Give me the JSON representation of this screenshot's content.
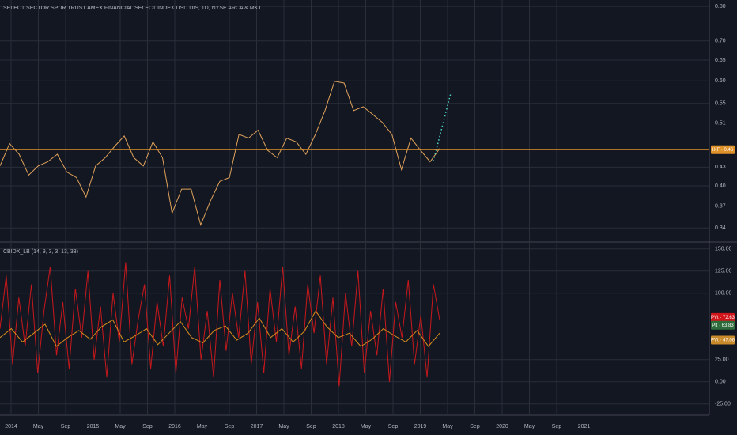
{
  "chart_data": [
    {
      "type": "line",
      "title": "SELECT SECTOR SPDR TRUST AMEX FINANCIAL SELECT INDEX USD DIS, 1D, NYSE ARCA & MKT",
      "log": true,
      "ylim": [
        0.323,
        0.82
      ],
      "yticks": [
        {
          "value": 0.8,
          "label": "0.80"
        },
        {
          "value": 0.7,
          "label": "0.70"
        },
        {
          "value": 0.65,
          "label": "0.65"
        },
        {
          "value": 0.6,
          "label": "0.60"
        },
        {
          "value": 0.55,
          "label": "0.55"
        },
        {
          "value": 0.51,
          "label": "0.51"
        },
        {
          "value": 0.43,
          "label": "0.43"
        },
        {
          "value": 0.4,
          "label": "0.40"
        },
        {
          "value": 0.37,
          "label": "0.37"
        },
        {
          "value": 0.34,
          "label": "0.34"
        }
      ],
      "color": "#e0a25a",
      "values": [
        0.432,
        0.471,
        0.452,
        0.417,
        0.432,
        0.439,
        0.452,
        0.422,
        0.413,
        0.383,
        0.432,
        0.446,
        0.466,
        0.485,
        0.446,
        0.432,
        0.474,
        0.446,
        0.36,
        0.395,
        0.395,
        0.344,
        0.377,
        0.407,
        0.413,
        0.488,
        0.481,
        0.496,
        0.459,
        0.446,
        0.481,
        0.474,
        0.452,
        0.488,
        0.535,
        0.599,
        0.595,
        0.535,
        0.543,
        0.527,
        0.511,
        0.488,
        0.426,
        0.481,
        0.459,
        0.439,
        0.462
      ],
      "projection": {
        "color": "#4dd0c4",
        "values": [
          0.44,
          0.572
        ]
      },
      "tags": [
        {
          "label": "IXF · 0.46",
          "value": 0.46,
          "color": "#e0922a"
        }
      ]
    },
    {
      "type": "line",
      "title": "CBIDX_LB (14, 9, 3, 3, 13, 33)",
      "ylim": [
        -35,
        156
      ],
      "yticks": [
        {
          "value": 150,
          "label": "150.00"
        },
        {
          "value": 125,
          "label": "125.00"
        },
        {
          "value": 100,
          "label": "100.00"
        },
        {
          "value": 25,
          "label": "25.00"
        },
        {
          "value": 0,
          "label": "0.00"
        },
        {
          "value": -25,
          "label": "-25.00"
        }
      ],
      "series": [
        {
          "color": "#c8181c",
          "values": [
            60,
            120,
            20,
            95,
            40,
            110,
            10,
            80,
            130,
            30,
            90,
            15,
            105,
            50,
            125,
            25,
            85,
            5,
            100,
            45,
            135,
            20,
            70,
            110,
            15,
            90,
            40,
            120,
            10,
            95,
            60,
            130,
            25,
            80,
            5,
            115,
            35,
            100,
            50,
            125,
            20,
            90,
            10,
            105,
            45,
            130,
            30,
            85,
            15,
            110,
            55,
            120,
            20,
            95,
            -5,
            100,
            40,
            125,
            10,
            80,
            30,
            105,
            0,
            90,
            50,
            115,
            20,
            75,
            5,
            110,
            70
          ]
        },
        {
          "color": "#d98c1c",
          "values": [
            50,
            60,
            45,
            55,
            65,
            40,
            50,
            58,
            48,
            62,
            70,
            45,
            52,
            60,
            42,
            55,
            68,
            50,
            44,
            58,
            63,
            47,
            55,
            72,
            50,
            60,
            45,
            57,
            80,
            62,
            50,
            55,
            40,
            48,
            60,
            52,
            45,
            58,
            40,
            55
          ]
        }
      ],
      "tags": [
        {
          "label": "PVt · 72.63",
          "value": 72.63,
          "color": "#d0161a"
        },
        {
          "label": "Plt · 63.83",
          "value": 63.83,
          "color": "#2e6b3a"
        },
        {
          "label": "PVt · 47.06",
          "value": 47.06,
          "color": "#c88a2a"
        }
      ]
    }
  ],
  "x_axis": {
    "labels": [
      "2014",
      "May",
      "Sep",
      "2015",
      "May",
      "Sep",
      "2016",
      "May",
      "Sep",
      "2017",
      "May",
      "Sep",
      "2018",
      "May",
      "Sep",
      "2019",
      "May",
      "Sep",
      "2020",
      "May",
      "Sep",
      "2021"
    ]
  }
}
